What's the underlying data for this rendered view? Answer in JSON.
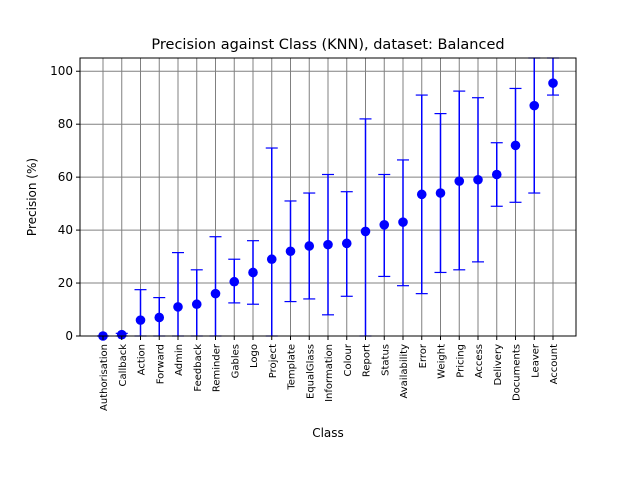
{
  "chart_data": {
    "type": "scatter",
    "title": "Precision against Class (KNN), dataset: Balanced",
    "xlabel": "Class",
    "ylabel": "Precision (%)",
    "ylim": [
      0,
      105
    ],
    "yticks": [
      0,
      20,
      40,
      60,
      80,
      100
    ],
    "grid": true,
    "marker_color": "#0000ff",
    "grid_color": "#808080",
    "categories": [
      "Authorisation",
      "Callback",
      "Action",
      "Forward",
      "Admin",
      "Feedback",
      "Reminder",
      "Gables",
      "Logo",
      "Project",
      "Template",
      "EqualGlass",
      "Information",
      "Colour",
      "Report",
      "Status",
      "Availability",
      "Error",
      "Weight",
      "Pricing",
      "Access",
      "Delivery",
      "Documents",
      "Leaver",
      "Account"
    ],
    "values": [
      0,
      0.5,
      6,
      7,
      11,
      12,
      16,
      20.5,
      24,
      29,
      32,
      34,
      34.5,
      35,
      39.5,
      42,
      43,
      53.5,
      54,
      58.5,
      59,
      61,
      72,
      87,
      95.5
    ],
    "error_low": [
      0,
      0,
      0,
      0,
      0,
      0,
      0,
      12.5,
      12,
      0,
      13,
      14,
      8,
      15,
      0,
      22.5,
      19,
      16,
      24,
      25,
      28,
      49,
      50.5,
      54,
      91
    ],
    "error_high": [
      0,
      1,
      17.5,
      14.5,
      31.5,
      25,
      37.5,
      29,
      36,
      71,
      51,
      54,
      61,
      54.5,
      82,
      61,
      66.5,
      91,
      84,
      92.5,
      90,
      73,
      93.5,
      105,
      105
    ]
  }
}
